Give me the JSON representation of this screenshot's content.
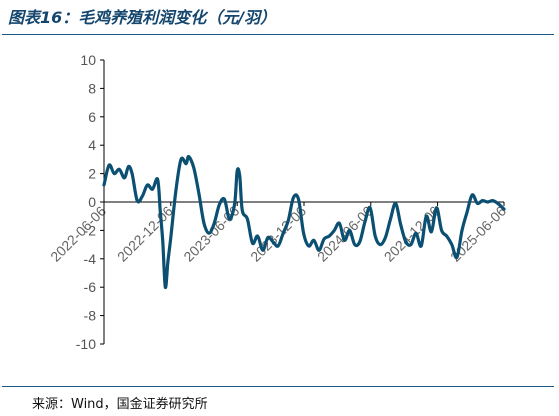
{
  "header": {
    "title": "图表16：毛鸡养殖利润变化（元/羽）"
  },
  "footer": {
    "source": "来源：Wind，国金证券研究所"
  },
  "colors": {
    "line": "#0b4f73",
    "axis": "#000000",
    "rule": "#1d5a86",
    "tick_text": "#666666"
  },
  "chart_data": {
    "type": "line",
    "title": "",
    "xlabel": "",
    "ylabel": "",
    "ylim": [
      -10,
      10
    ],
    "yticks": [
      10,
      8,
      6,
      4,
      2,
      0,
      -2,
      -4,
      -6,
      -8,
      -10
    ],
    "xlim": [
      "2022-06-06",
      "2025-06-06"
    ],
    "xticks": [
      "2022-06-06",
      "2022-12-06",
      "2023-06-06",
      "2023-12-06",
      "2024-06-06",
      "2024-12-06",
      "2025-06-06"
    ],
    "grid": false,
    "legend": "none",
    "series": [
      {
        "name": "",
        "points": [
          [
            "2022-06-06",
            1.2
          ],
          [
            "2022-06-20",
            2.6
          ],
          [
            "2022-07-04",
            2.0
          ],
          [
            "2022-07-18",
            2.3
          ],
          [
            "2022-08-01",
            1.7
          ],
          [
            "2022-08-12",
            2.5
          ],
          [
            "2022-08-22",
            2.0
          ],
          [
            "2022-09-05",
            0.1
          ],
          [
            "2022-09-19",
            0.4
          ],
          [
            "2022-10-03",
            1.2
          ],
          [
            "2022-10-17",
            0.9
          ],
          [
            "2022-10-31",
            1.6
          ],
          [
            "2022-11-07",
            -0.6
          ],
          [
            "2022-11-14",
            -2.8
          ],
          [
            "2022-11-21",
            -6.0
          ],
          [
            "2022-11-28",
            -4.2
          ],
          [
            "2022-12-06",
            -2.5
          ],
          [
            "2022-12-20",
            0.8
          ],
          [
            "2023-01-03",
            3.0
          ],
          [
            "2023-01-17",
            2.7
          ],
          [
            "2023-01-24",
            3.2
          ],
          [
            "2023-02-07",
            2.4
          ],
          [
            "2023-02-21",
            0.6
          ],
          [
            "2023-03-07",
            -1.5
          ],
          [
            "2023-03-21",
            -2.2
          ],
          [
            "2023-04-04",
            -1.5
          ],
          [
            "2023-04-18",
            -0.2
          ],
          [
            "2023-05-02",
            0.2
          ],
          [
            "2023-05-16",
            -1.2
          ],
          [
            "2023-05-30",
            -0.1
          ],
          [
            "2023-06-06",
            2.2
          ],
          [
            "2023-06-13",
            1.8
          ],
          [
            "2023-06-20",
            -0.6
          ],
          [
            "2023-07-04",
            -1.2
          ],
          [
            "2023-07-18",
            -2.9
          ],
          [
            "2023-08-01",
            -2.4
          ],
          [
            "2023-08-15",
            -3.4
          ],
          [
            "2023-08-29",
            -2.5
          ],
          [
            "2023-09-12",
            -2.8
          ],
          [
            "2023-09-26",
            -3.1
          ],
          [
            "2023-10-10",
            -2.2
          ],
          [
            "2023-10-24",
            -1.3
          ],
          [
            "2023-11-07",
            0.3
          ],
          [
            "2023-11-21",
            0.2
          ],
          [
            "2023-12-05",
            -2.2
          ],
          [
            "2023-12-19",
            -3.1
          ],
          [
            "2024-01-02",
            -2.7
          ],
          [
            "2024-01-16",
            -3.4
          ],
          [
            "2024-01-30",
            -2.6
          ],
          [
            "2024-02-13",
            -2.4
          ],
          [
            "2024-02-27",
            -2.0
          ],
          [
            "2024-03-12",
            -1.5
          ],
          [
            "2024-03-26",
            -2.7
          ],
          [
            "2024-04-09",
            -2.0
          ],
          [
            "2024-04-23",
            -3.0
          ],
          [
            "2024-05-07",
            -2.8
          ],
          [
            "2024-05-21",
            -1.4
          ],
          [
            "2024-06-04",
            -0.4
          ],
          [
            "2024-06-18",
            -2.4
          ],
          [
            "2024-07-02",
            -3.0
          ],
          [
            "2024-07-16",
            -2.5
          ],
          [
            "2024-07-30",
            -1.2
          ],
          [
            "2024-08-13",
            -0.1
          ],
          [
            "2024-08-27",
            -1.6
          ],
          [
            "2024-09-10",
            -2.8
          ],
          [
            "2024-09-24",
            -3.0
          ],
          [
            "2024-10-08",
            -2.2
          ],
          [
            "2024-10-22",
            -3.1
          ],
          [
            "2024-11-05",
            -1.0
          ],
          [
            "2024-11-19",
            -2.1
          ],
          [
            "2024-12-03",
            -0.4
          ],
          [
            "2024-12-17",
            -2.0
          ],
          [
            "2024-12-31",
            -2.4
          ],
          [
            "2025-01-14",
            -3.0
          ],
          [
            "2025-01-28",
            -3.9
          ],
          [
            "2025-02-11",
            -2.0
          ],
          [
            "2025-02-25",
            -0.7
          ],
          [
            "2025-03-11",
            0.5
          ],
          [
            "2025-03-25",
            -0.1
          ],
          [
            "2025-04-08",
            0.1
          ],
          [
            "2025-04-22",
            0.0
          ],
          [
            "2025-05-06",
            0.1
          ],
          [
            "2025-05-20",
            -0.1
          ],
          [
            "2025-06-06",
            -0.5
          ]
        ]
      }
    ]
  }
}
